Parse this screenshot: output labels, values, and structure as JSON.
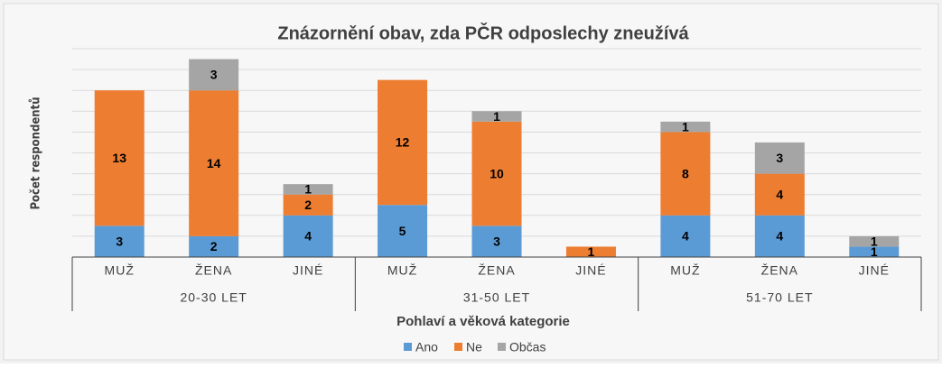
{
  "chart_data": {
    "type": "stacked_bar",
    "title": "Znázornění obav, zda PČR odposlechy zneužívá",
    "y_label": "Počet respondentů",
    "x_label": "Pohlaví a věková kategorie",
    "categories": [
      "MUŽ",
      "ŽENA",
      "JINÉ",
      "MUŽ",
      "ŽENA",
      "JINÉ",
      "MUŽ",
      "ŽENA",
      "JINÉ"
    ],
    "groups": [
      "20-30 LET",
      "31-50 LET",
      "51-70 LET"
    ],
    "series": [
      {
        "name": "Ano",
        "color": "#5b9bd5",
        "values": [
          3,
          2,
          4,
          5,
          3,
          null,
          4,
          4,
          1
        ]
      },
      {
        "name": "Ne",
        "color": "#ed7d31",
        "values": [
          13,
          14,
          2,
          12,
          10,
          1,
          8,
          4,
          null
        ]
      },
      {
        "name": "Občas",
        "color": "#a5a5a5",
        "values": [
          null,
          3,
          1,
          null,
          1,
          null,
          1,
          3,
          1
        ]
      }
    ],
    "ylim": [
      0,
      20
    ],
    "yticks": [
      0,
      2,
      4,
      6,
      8,
      10,
      12,
      14,
      16,
      18,
      20
    ],
    "grid": true
  }
}
